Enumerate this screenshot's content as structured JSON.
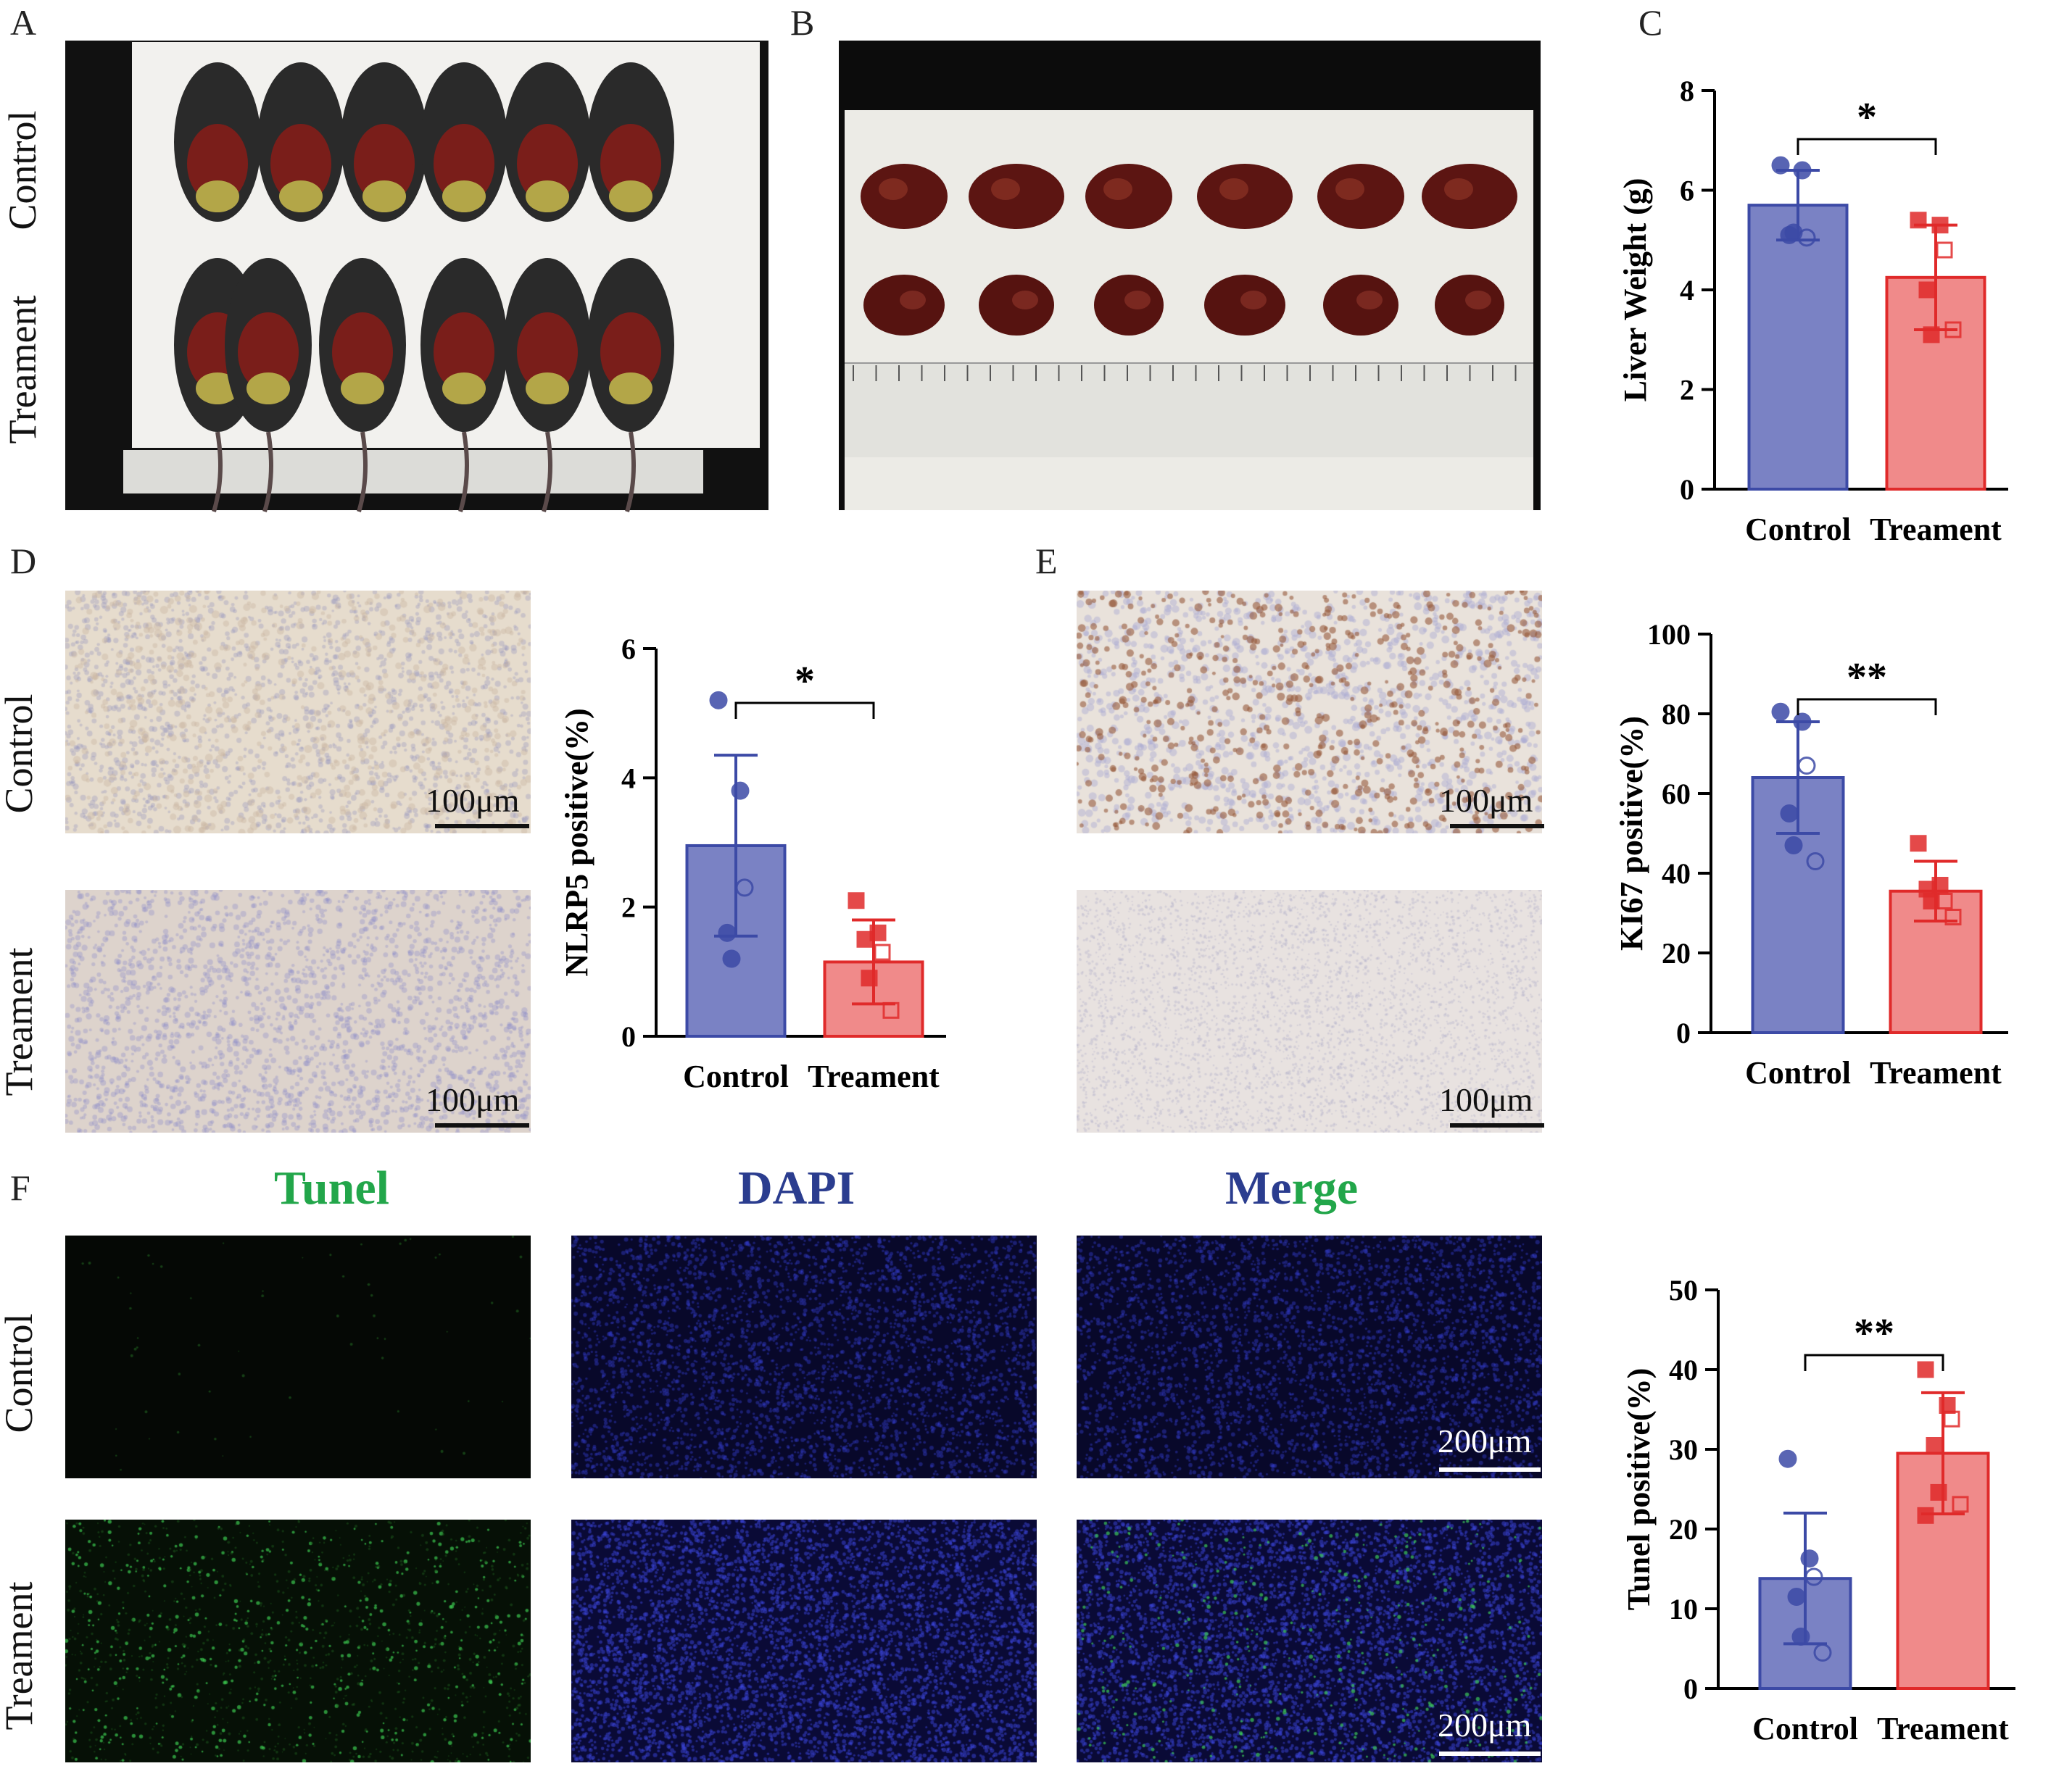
{
  "panels": {
    "A": {
      "letter": "A",
      "rows": [
        "Control",
        "Treament"
      ]
    },
    "B": {
      "letter": "B"
    },
    "C": {
      "letter": "C"
    },
    "D": {
      "letter": "D",
      "rows": [
        "Control",
        "Treament"
      ],
      "scale": "100μm"
    },
    "E": {
      "letter": "E",
      "scale": "100μm"
    },
    "F": {
      "letter": "F",
      "rows": [
        "Control",
        "Treament"
      ],
      "scale": "200μm",
      "channels": {
        "tunel": "Tunel",
        "dapi": "DAPI",
        "merge_a": "Me",
        "merge_b": "rge"
      },
      "channel_colors": {
        "tunel": "#22a64a",
        "dapi": "#2b3d8f"
      }
    }
  },
  "colors": {
    "control_fill": "#7a82c4",
    "control_stroke": "#3c4aa6",
    "treatment_fill": "#f08a8a",
    "treatment_stroke": "#e02a2a"
  },
  "chart_data": [
    {
      "id": "C",
      "type": "bar",
      "categories": [
        "Control",
        "Treament"
      ],
      "values": [
        5.7,
        4.25
      ],
      "error": [
        0.7,
        1.05
      ],
      "ylabel": "Liver Weight (g)",
      "ylim": [
        0,
        8
      ],
      "yticks": [
        0,
        2,
        4,
        6,
        8
      ],
      "significance": "*",
      "grid": false,
      "points": {
        "Control": [
          6.5,
          6.4,
          5.05,
          5.1,
          5.15
        ],
        "Treament": [
          5.4,
          5.3,
          4.8,
          4.0,
          3.1,
          3.2
        ]
      }
    },
    {
      "id": "D",
      "type": "bar",
      "categories": [
        "Control",
        "Treament"
      ],
      "values": [
        2.95,
        1.15
      ],
      "error": [
        1.4,
        0.65
      ],
      "ylabel": "NLRP5 positive(%)",
      "ylim": [
        0,
        6
      ],
      "yticks": [
        0,
        2,
        4,
        6
      ],
      "significance": "*",
      "grid": false,
      "points": {
        "Control": [
          5.2,
          3.8,
          2.3,
          1.6,
          1.2
        ],
        "Treament": [
          2.1,
          1.6,
          1.3,
          1.5,
          0.9,
          0.4
        ]
      }
    },
    {
      "id": "E",
      "type": "bar",
      "categories": [
        "Control",
        "Treament"
      ],
      "values": [
        64,
        35.5
      ],
      "error": [
        14,
        7.5
      ],
      "ylabel": "KI67 positive(%)",
      "ylim": [
        0,
        100
      ],
      "yticks": [
        0,
        20,
        40,
        60,
        80,
        100
      ],
      "significance": "**",
      "grid": false,
      "points": {
        "Control": [
          80.5,
          78,
          67,
          55,
          47,
          43
        ],
        "Treament": [
          47.5,
          37,
          33,
          36,
          33,
          29
        ]
      }
    },
    {
      "id": "F",
      "type": "bar",
      "categories": [
        "Control",
        "Treament"
      ],
      "values": [
        13.8,
        29.5
      ],
      "error": [
        8.2,
        7.6
      ],
      "ylabel": "Tunel positive(%)",
      "ylim": [
        0,
        50
      ],
      "yticks": [
        0,
        10,
        20,
        30,
        40,
        50
      ],
      "significance": "**",
      "grid": false,
      "points": {
        "Control": [
          28.8,
          16.3,
          14,
          11.5,
          6.5,
          4.5
        ],
        "Treament": [
          40,
          35.5,
          33.8,
          30.5,
          24.6,
          23.1,
          21.7
        ]
      }
    }
  ]
}
